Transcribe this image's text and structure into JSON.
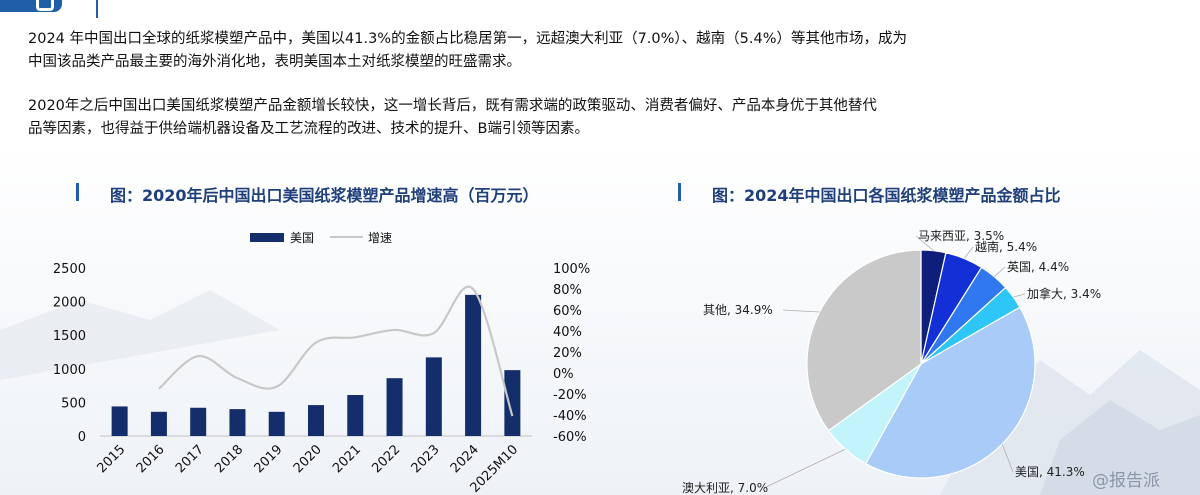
{
  "paragraphs": [
    "2024 年中国出口全球的纸浆模塑产品中，美国以41.3%的金额占比稳居第一，远超澳大利亚（7.0%）、越南（5.4%）等其他市场，成为",
    "中国该品类产品最主要的海外消化地，表明美国本土对纸浆模塑的旺盛需求。",
    "2020年之后中国出口美国纸浆模塑产品金额增长较快，这一增长背后，既有需求端的政策驱动、消费者偏好、产品本身优于其他替代",
    "品等因素，也得益于供给端机器设备及工艺流程的改进、技术的提升、B端引领等因素。"
  ],
  "colors": {
    "accent": "#1f5fa8",
    "bar": "#142d6b",
    "line": "#c8c8c8"
  },
  "chart_data": [
    {
      "type": "bar",
      "title": "图：2020年后中国出口美国纸浆模塑产品增速高（百万元）",
      "categories": [
        "2015",
        "2016",
        "2017",
        "2018",
        "2019",
        "2020",
        "2021",
        "2022",
        "2023",
        "2024",
        "2025M10"
      ],
      "series": [
        {
          "name": "美国",
          "type": "bar",
          "axis": "left",
          "values": [
            440,
            360,
            420,
            400,
            360,
            460,
            610,
            860,
            1170,
            2100,
            980
          ]
        },
        {
          "name": "增速",
          "type": "line",
          "axis": "right",
          "values": [
            null,
            -15,
            16,
            -5,
            -13,
            29,
            34,
            41,
            38,
            80,
            -41
          ]
        }
      ],
      "ylim": [
        0,
        2500
      ],
      "yticks": [
        "0",
        "500",
        "1000",
        "1500",
        "2000",
        "2500"
      ],
      "y2lim": [
        -60,
        100
      ],
      "y2ticks": [
        "-60%",
        "-40%",
        "-20%",
        "0%",
        "20%",
        "40%",
        "60%",
        "80%",
        "100%"
      ],
      "legend": "top"
    },
    {
      "type": "pie",
      "title": "图：2024年中国出口各国纸浆模塑产品金额占比",
      "slices": [
        {
          "label": "马来西亚, 3.5%",
          "value": 3.5,
          "color": "#0d1f7a"
        },
        {
          "label": "越南, 5.4%",
          "value": 5.4,
          "color": "#1230d6"
        },
        {
          "label": "英国, 4.4%",
          "value": 4.4,
          "color": "#2f78f0"
        },
        {
          "label": "加拿大, 3.4%",
          "value": 3.4,
          "color": "#2ec6f7"
        },
        {
          "label": "美国, 41.3%",
          "value": 41.3,
          "color": "#a8cbf7"
        },
        {
          "label": "澳大利亚, 7.0%",
          "value": 7.0,
          "color": "#c4f4fb"
        },
        {
          "label": "其他, 34.9%",
          "value": 34.9,
          "color": "#c9c9c9"
        }
      ]
    }
  ],
  "watermark": "@报告派"
}
